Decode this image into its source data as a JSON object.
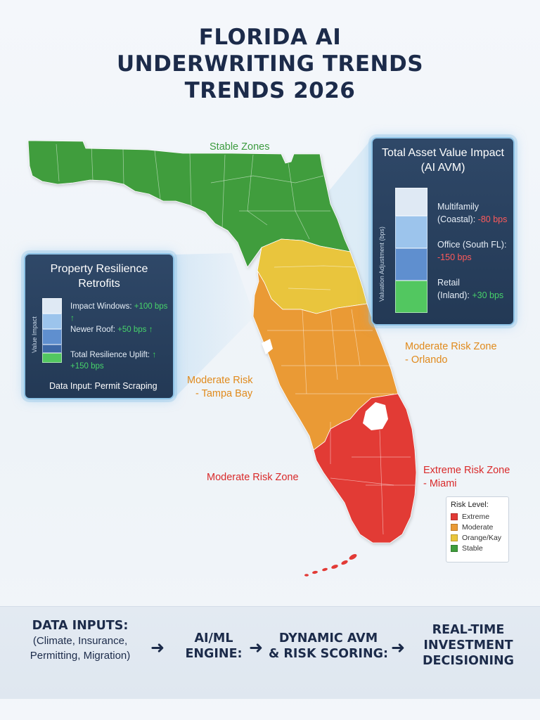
{
  "title": {
    "line1": "FLORIDA AI",
    "line2": "UNDERWRITING TRENDS",
    "line3": "TRENDS 2026"
  },
  "map": {
    "labels": {
      "stable": "Stable Zones",
      "moderate_tampa_1": "Moderate Risk",
      "moderate_tampa_2": "- Tampa Bay",
      "moderate_orlando_1": "Moderate Risk Zone",
      "moderate_orlando_2": "- Orlando",
      "moderate_zone": "Moderate Risk Zone",
      "extreme_1": "Extreme Risk Zone",
      "extreme_2": "- Miami"
    },
    "colors": {
      "stable": "#3f9d3c",
      "yellow": "#e9c53c",
      "orange": "#ea9a35",
      "red": "#e23a36"
    }
  },
  "resilience_panel": {
    "title_line1": "Property Resilience",
    "title_line2": "Retrofits",
    "axis_label": "Value Impact",
    "rows": [
      {
        "label": "Impact Windows:",
        "value": "+100 bps"
      },
      {
        "label": "Newer Roof:",
        "value": "+50 bps"
      },
      {
        "label": "Total Resilience Uplift:",
        "value": "+150 bps"
      }
    ],
    "data_input": "Data Input: Permit Scraping"
  },
  "avm_panel": {
    "title_line1": "Total Asset Value Impact",
    "title_line2": "(AI AVM)",
    "axis_label": "Valuation Adjustment (bps)",
    "rows": [
      {
        "label1": "Multifamily",
        "label2": "(Coastal):",
        "value": "-80 bps"
      },
      {
        "label1": "Office (South FL):",
        "label2": "",
        "value": "-150 bps"
      },
      {
        "label1": "Retail",
        "label2": "(Inland):",
        "value": "+30 bps"
      }
    ]
  },
  "legend": {
    "title": "Risk Level:",
    "items": [
      {
        "label": "Extreme",
        "color": "#e23a36"
      },
      {
        "label": "Moderate",
        "color": "#ea9a35"
      },
      {
        "label": "Orange/Kay",
        "color": "#e9c53c"
      },
      {
        "label": "Stable",
        "color": "#3f9d3c"
      }
    ]
  },
  "flow": {
    "step1_head": "DATA INPUTS:",
    "step1_sub1": "(Climate, Insurance,",
    "step1_sub2": "Permitting, Migration)",
    "step2_line1": "AI/ML",
    "step2_line2": "ENGINE:",
    "step3_line1": "DYNAMIC AVM",
    "step3_line2": "& RISK SCORING:",
    "step4_line1": "REAL-TIME",
    "step4_line2": "INVESTMENT",
    "step4_line3": "DECISIONING",
    "arrow": "➜"
  }
}
